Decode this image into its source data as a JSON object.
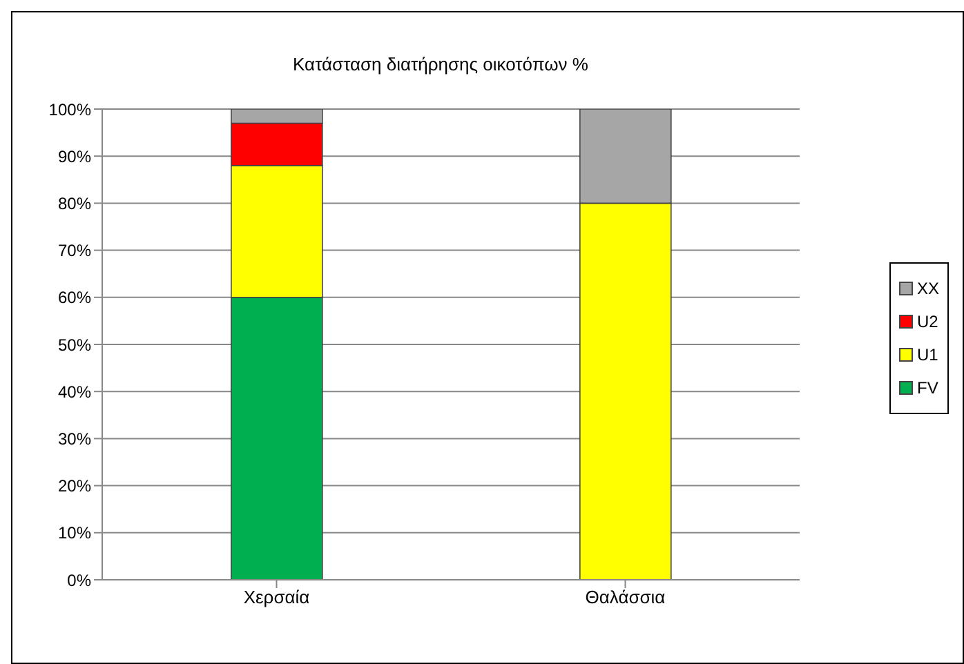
{
  "chart_data": {
    "type": "bar",
    "title": "Κατάσταση διατήρησης οικοτόπων %",
    "categories": [
      "Χερσαία",
      "Θαλάσσια"
    ],
    "stacked": true,
    "series": [
      {
        "name": "FV",
        "color": "#00b050",
        "values": [
          60,
          0
        ]
      },
      {
        "name": "U1",
        "color": "#ffff00",
        "values": [
          28,
          80
        ]
      },
      {
        "name": "U2",
        "color": "#ff0000",
        "values": [
          9,
          0
        ]
      },
      {
        "name": "XX",
        "color": "#a6a6a6",
        "values": [
          3,
          20
        ]
      }
    ],
    "ylim": [
      0,
      100
    ],
    "yticks": [
      {
        "value": 0,
        "label": "0%"
      },
      {
        "value": 10,
        "label": "10%"
      },
      {
        "value": 20,
        "label": "20%"
      },
      {
        "value": 30,
        "label": "30%"
      },
      {
        "value": 40,
        "label": "40%"
      },
      {
        "value": 50,
        "label": "50%"
      },
      {
        "value": 60,
        "label": "60%"
      },
      {
        "value": 70,
        "label": "70%"
      },
      {
        "value": 80,
        "label": "80%"
      },
      {
        "value": 90,
        "label": "90%"
      },
      {
        "value": 100,
        "label": "100%"
      }
    ],
    "grid": "y",
    "legend": "right"
  }
}
